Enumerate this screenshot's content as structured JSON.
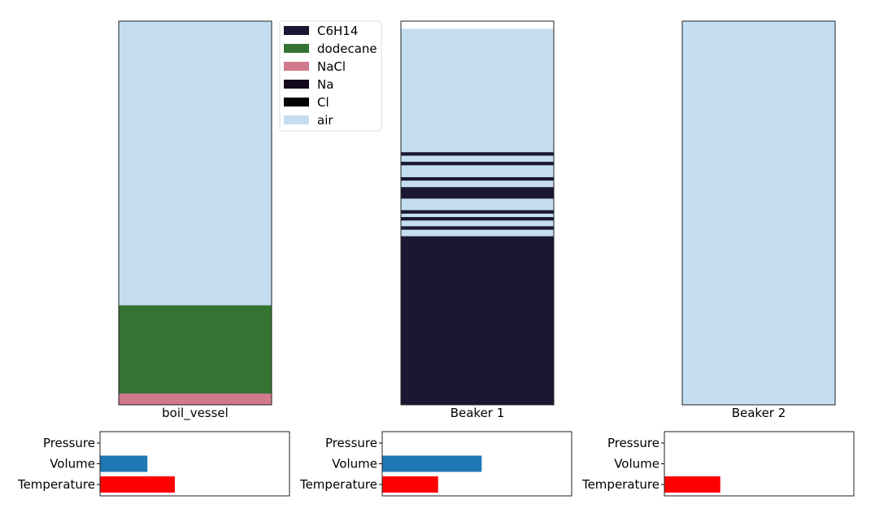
{
  "chart_data": [
    {
      "type": "stacked-column",
      "title": "",
      "xlabel": "boil_vessel",
      "ylim": [
        0,
        1
      ],
      "layers_bottom_to_top": [
        {
          "component": "NaCl",
          "fraction": 0.03
        },
        {
          "component": "dodecane",
          "fraction": 0.23
        },
        {
          "component": "air",
          "fraction": 0.74
        }
      ]
    },
    {
      "type": "stacked-column",
      "title": "",
      "xlabel": "Beaker 1",
      "ylim": [
        0,
        1
      ],
      "layers_bottom_to_top": [
        {
          "component": "C6H14",
          "fraction": 0.44
        },
        {
          "component": "air",
          "fraction": 0.017
        },
        {
          "component": "C6H14",
          "fraction": 0.009
        },
        {
          "component": "air",
          "fraction": 0.015
        },
        {
          "component": "C6H14",
          "fraction": 0.009
        },
        {
          "component": "air",
          "fraction": 0.009
        },
        {
          "component": "C6H14",
          "fraction": 0.009
        },
        {
          "component": "air",
          "fraction": 0.03
        },
        {
          "component": "C6H14",
          "fraction": 0.03
        },
        {
          "component": "air",
          "fraction": 0.017
        },
        {
          "component": "C6H14",
          "fraction": 0.009
        },
        {
          "component": "air",
          "fraction": 0.031
        },
        {
          "component": "C6H14",
          "fraction": 0.009
        },
        {
          "component": "air",
          "fraction": 0.016
        },
        {
          "component": "C6H14",
          "fraction": 0.009
        },
        {
          "component": "air",
          "fraction": 0.321
        }
      ]
    },
    {
      "type": "stacked-column",
      "title": "",
      "xlabel": "Beaker 2",
      "ylim": [
        0,
        1
      ],
      "layers_bottom_to_top": [
        {
          "component": "air",
          "fraction": 1.0
        }
      ]
    },
    {
      "type": "bar-horizontal",
      "vessel": "boil_vessel",
      "categories": [
        "Pressure",
        "Volume",
        "Temperature"
      ],
      "values": [
        0,
        0.25,
        0.395
      ],
      "xlim": [
        0,
        1
      ]
    },
    {
      "type": "bar-horizontal",
      "vessel": "Beaker 1",
      "categories": [
        "Pressure",
        "Volume",
        "Temperature"
      ],
      "values": [
        0,
        0.525,
        0.295
      ],
      "xlim": [
        0,
        1
      ]
    },
    {
      "type": "bar-horizontal",
      "vessel": "Beaker 2",
      "categories": [
        "Pressure",
        "Volume",
        "Temperature"
      ],
      "values": [
        0,
        0,
        0.295
      ],
      "xlim": [
        0,
        1
      ]
    }
  ],
  "legend": {
    "placement": "top-center",
    "entries": [
      {
        "label": "C6H14",
        "color": "#1b1631"
      },
      {
        "label": "dodecane",
        "color": "#347433"
      },
      {
        "label": "NaCl",
        "color": "#d07a8c"
      },
      {
        "label": "Na",
        "color": "#150a1c"
      },
      {
        "label": "Cl",
        "color": "#000000"
      },
      {
        "label": "air",
        "color": "#c4ddf0"
      }
    ]
  },
  "bar_colors": {
    "Pressure": "#1f77b4",
    "Volume": "#1f77b4",
    "Temperature": "#ff0000"
  }
}
